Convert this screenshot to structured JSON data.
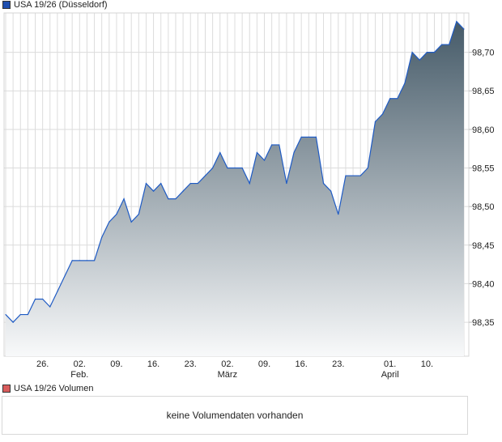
{
  "chart_data": {
    "type": "area",
    "title": "USA 19/26 (Düsseldorf)",
    "xlabel": "",
    "ylabel": "",
    "ylim": [
      98.306,
      98.751
    ],
    "grid": true,
    "legend_placement": "top-left",
    "yticks": [
      "98,35",
      "98,40",
      "98,45",
      "98,50",
      "98,55",
      "98,60",
      "98,65",
      "98,70"
    ],
    "ytick_values": [
      98.35,
      98.4,
      98.45,
      98.5,
      98.55,
      98.6,
      98.65,
      98.7
    ],
    "xticks": [
      {
        "index": 5,
        "label": "26.",
        "sub": ""
      },
      {
        "index": 10,
        "label": "02.",
        "sub": "Feb."
      },
      {
        "index": 15,
        "label": "09.",
        "sub": ""
      },
      {
        "index": 20,
        "label": "16.",
        "sub": ""
      },
      {
        "index": 25,
        "label": "23.",
        "sub": ""
      },
      {
        "index": 30,
        "label": "02.",
        "sub": "März"
      },
      {
        "index": 35,
        "label": "09.",
        "sub": ""
      },
      {
        "index": 40,
        "label": "16.",
        "sub": ""
      },
      {
        "index": 45,
        "label": "23.",
        "sub": ""
      },
      {
        "index": 52,
        "label": "01.",
        "sub": "April"
      },
      {
        "index": 57,
        "label": "10.",
        "sub": ""
      }
    ],
    "series": [
      {
        "name": "USA 19/26 (Düsseldorf)",
        "values": [
          98.36,
          98.35,
          98.36,
          98.36,
          98.38,
          98.38,
          98.37,
          98.39,
          98.41,
          98.43,
          98.43,
          98.43,
          98.43,
          98.46,
          98.48,
          98.49,
          98.51,
          98.48,
          98.49,
          98.53,
          98.52,
          98.53,
          98.51,
          98.51,
          98.52,
          98.53,
          98.53,
          98.54,
          98.55,
          98.57,
          98.55,
          98.55,
          98.55,
          98.53,
          98.57,
          98.56,
          98.58,
          98.58,
          98.53,
          98.57,
          98.59,
          98.59,
          98.59,
          98.53,
          98.52,
          98.49,
          98.54,
          98.54,
          98.54,
          98.55,
          98.61,
          98.62,
          98.64,
          98.64,
          98.66,
          98.7,
          98.69,
          98.7,
          98.7,
          98.71,
          98.71,
          98.74,
          98.73
        ]
      }
    ]
  },
  "colors": {
    "line": "#1f5bc4",
    "fill_top": "#455a68",
    "fill_bottom": "#f8f9fa",
    "price_legend": "#1f4fb0",
    "volume_legend": "#d95c5c"
  },
  "volume": {
    "title": "USA 19/26 Volumen",
    "message": "keine Volumendaten vorhanden"
  }
}
